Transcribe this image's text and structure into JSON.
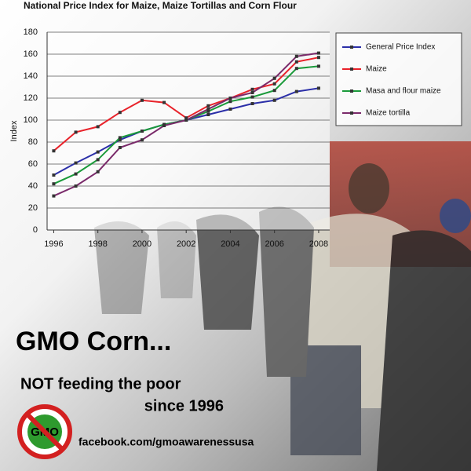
{
  "chart_data": {
    "type": "line",
    "title": "National Price Index for Maize, Maize Tortillas and Corn Flour",
    "y_label": "Index",
    "x": [
      1996,
      1997,
      1998,
      1999,
      2000,
      2001,
      2002,
      2003,
      2004,
      2005,
      2006,
      2007,
      2008
    ],
    "xlim": [
      1995.7,
      2008.5
    ],
    "xticks": [
      1996,
      1998,
      2000,
      2002,
      2004,
      2006,
      2008
    ],
    "ylim": [
      0,
      180
    ],
    "yticks": [
      0,
      20,
      40,
      60,
      80,
      100,
      120,
      140,
      160,
      180
    ],
    "grid": true,
    "legend": "right",
    "series": [
      {
        "name": "General Price Index",
        "color": "#2b2fa8",
        "values": [
          50,
          61,
          71,
          82,
          90,
          96,
          100,
          105,
          110,
          115,
          118,
          126,
          129
        ]
      },
      {
        "name": "Maize",
        "color": "#e8222a",
        "values": [
          72,
          89,
          94,
          107,
          118,
          116,
          102,
          113,
          120,
          128,
          133,
          153,
          157
        ]
      },
      {
        "name": "Masa and flour maize",
        "color": "#1a9a3a",
        "values": [
          42,
          51,
          64,
          84,
          90,
          96,
          100,
          108,
          117,
          121,
          127,
          147,
          149
        ]
      },
      {
        "name": "Maize tortilla",
        "color": "#7a2a6a",
        "values": [
          31,
          40,
          53,
          75,
          82,
          95,
          100,
          110,
          120,
          125,
          138,
          158,
          161
        ]
      }
    ]
  },
  "overlay": {
    "headline": "GMO Corn...",
    "line1": "NOT feeding the poor",
    "line2": "since 1996",
    "logo": "GMO",
    "link": "facebook.com/gmoawarenessusa"
  }
}
